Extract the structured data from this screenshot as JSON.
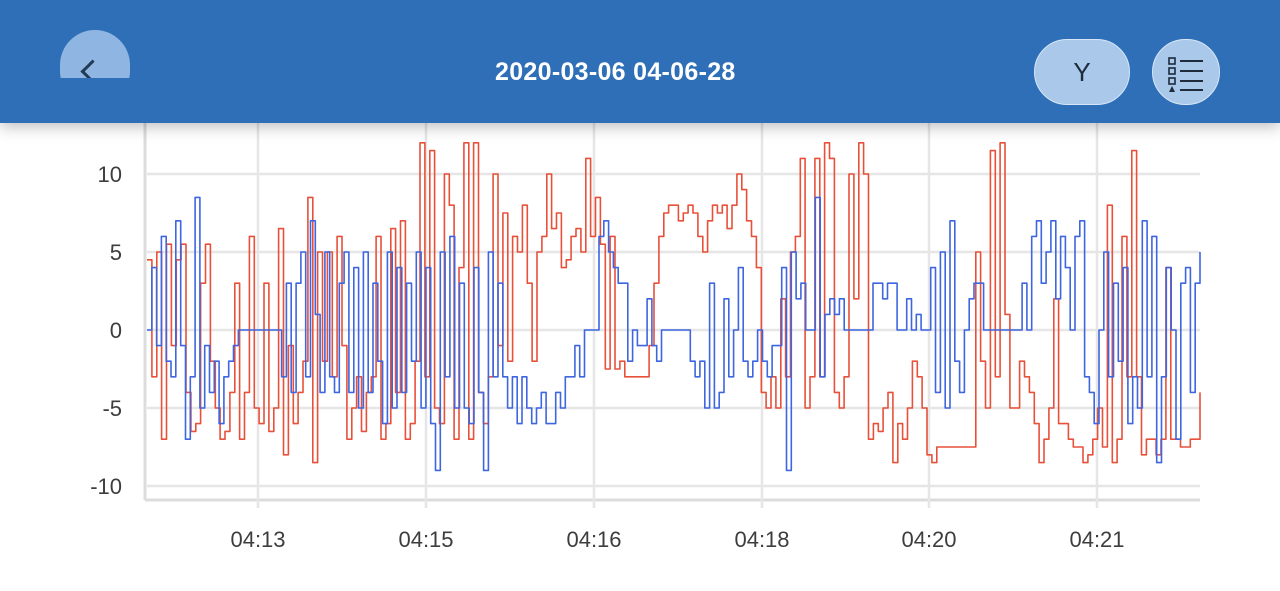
{
  "header": {
    "title": "2020-03-06 04-06-28",
    "y_button_label": "Y",
    "back_icon": "chevron-left-icon",
    "list_icon": "list-icon",
    "background_color": "#2f6fb7"
  },
  "chart_data": {
    "type": "line",
    "title": "",
    "xlabel": "",
    "ylabel": "",
    "ylim": [
      -11,
      12
    ],
    "yticks": [
      10,
      5,
      0,
      -5,
      -10
    ],
    "x_tick_labels": [
      "04:13",
      "04:15",
      "04:16",
      "04:18",
      "04:20",
      "04:21"
    ],
    "grid": true,
    "series": [
      {
        "color": "#e8503a",
        "values": [
          4.5,
          -3,
          5,
          -7,
          5.5,
          -1,
          4.5,
          5.5,
          -4,
          -6.5,
          -6,
          3,
          5.5,
          -2,
          -5,
          -7,
          -6.5,
          -4,
          3,
          -7,
          -4,
          6,
          -5,
          -6,
          3,
          -6.5,
          -5,
          6.5,
          -8,
          -1,
          -6,
          -4,
          -2,
          8.5,
          -8.5,
          5,
          -2,
          5,
          -3,
          6,
          -1,
          -7,
          -5,
          -3,
          -6.5,
          -4,
          -3,
          6,
          -7,
          -6,
          6.5,
          -4,
          7,
          -7,
          -6,
          -2,
          12,
          -3,
          11.5,
          -5,
          -6,
          10,
          8,
          -7,
          4,
          12,
          -7,
          12,
          -4,
          -6,
          -3,
          10,
          -1,
          7.5,
          -2,
          6,
          5,
          8,
          3,
          -2,
          5,
          6,
          10,
          6.5,
          7.5,
          4,
          4.5,
          6,
          6.5,
          5,
          11,
          6,
          8.5,
          5.5,
          -2.5,
          6,
          -2.5,
          -2,
          -3,
          -3,
          -3,
          -3,
          -3,
          -1,
          3,
          6,
          7.5,
          8,
          8,
          7,
          7.5,
          8,
          7.5,
          6,
          5,
          7,
          8,
          7.5,
          8,
          6.5,
          8,
          10,
          9,
          7,
          6,
          4,
          -4,
          -5,
          -3,
          -5,
          2,
          -3,
          5,
          6,
          11,
          -5,
          -3,
          11,
          -3,
          12,
          11,
          -4,
          -5,
          -3,
          10,
          2,
          12,
          10,
          -7,
          -6,
          -6.5,
          -5,
          -4,
          -8.5,
          -6,
          -7,
          -5,
          -2,
          -3,
          -5,
          -8,
          -8.5,
          -7.5,
          -7.5,
          -7.5,
          -7.5,
          -7.5,
          -7.5,
          -7.5,
          -7.5,
          5,
          -2,
          -5,
          11.5,
          -3,
          12,
          1,
          -5,
          -5,
          -2,
          -3,
          -4,
          -6,
          -8.5,
          -7,
          -5,
          2,
          -6,
          -6,
          -7,
          -7.5,
          -7.5,
          -8.5,
          -8,
          -7,
          -5,
          -7.5,
          8,
          -8.5,
          -7,
          6,
          -3,
          11.5,
          -3,
          -8,
          -7,
          -7,
          -8,
          -7,
          4,
          -7,
          -7,
          -7.5,
          -7.5,
          -7,
          -7,
          -4
        ]
      },
      {
        "color": "#3d66e0",
        "values": [
          0,
          4,
          -1,
          6,
          -2,
          -3,
          7,
          -1,
          -7,
          -3,
          8.5,
          -5,
          -1,
          -4,
          -2,
          -6,
          -3,
          -2,
          -1,
          0,
          0,
          0,
          0,
          0,
          0,
          0,
          0,
          0,
          -3,
          3,
          -4,
          3,
          5,
          -3,
          7,
          1,
          -4,
          5,
          -3,
          -4,
          3,
          5,
          -4,
          4,
          -5,
          5,
          -4,
          3,
          -2,
          -6,
          5,
          -5,
          4,
          -4,
          3,
          -2,
          5,
          -5,
          4,
          -6,
          -9,
          5,
          -3,
          6,
          -5,
          3,
          -5,
          -6,
          4,
          -4,
          -9,
          5,
          -3,
          3,
          -3,
          -5,
          -3,
          -6,
          -3,
          -5,
          -6,
          -5,
          -4,
          -6,
          -6,
          -4,
          -5,
          -3,
          -3,
          -1,
          -3,
          0,
          0,
          0,
          6,
          7,
          5,
          4,
          3,
          3,
          -2,
          0,
          -1,
          -1,
          2,
          -1,
          -2,
          0,
          0,
          0,
          0,
          0,
          0,
          -2,
          -3,
          -2,
          -5,
          3,
          -5,
          -4,
          2,
          -3,
          0,
          4,
          -2,
          -3,
          -2,
          0,
          -2,
          -3,
          -1,
          -1,
          4,
          -9,
          5,
          2,
          3,
          0,
          0,
          8.5,
          -3,
          1,
          2,
          1,
          2,
          0,
          0,
          0,
          0,
          0,
          0,
          3,
          3,
          2,
          3,
          3,
          0,
          0,
          2,
          0,
          1,
          0,
          0,
          4,
          -4,
          5,
          -5,
          7,
          -2,
          -4,
          0,
          2,
          3,
          3,
          0,
          0,
          0,
          0,
          0,
          0,
          0,
          0,
          3,
          0,
          6,
          7,
          3,
          5,
          7,
          2,
          6,
          4,
          0,
          6,
          7,
          -3,
          -4,
          -6,
          0,
          5,
          -3,
          3,
          -2,
          4,
          -6,
          -3,
          -5,
          7,
          -3,
          6,
          -8.5,
          -3,
          4,
          0,
          -7,
          3,
          4,
          -4,
          3,
          5
        ]
      }
    ]
  }
}
